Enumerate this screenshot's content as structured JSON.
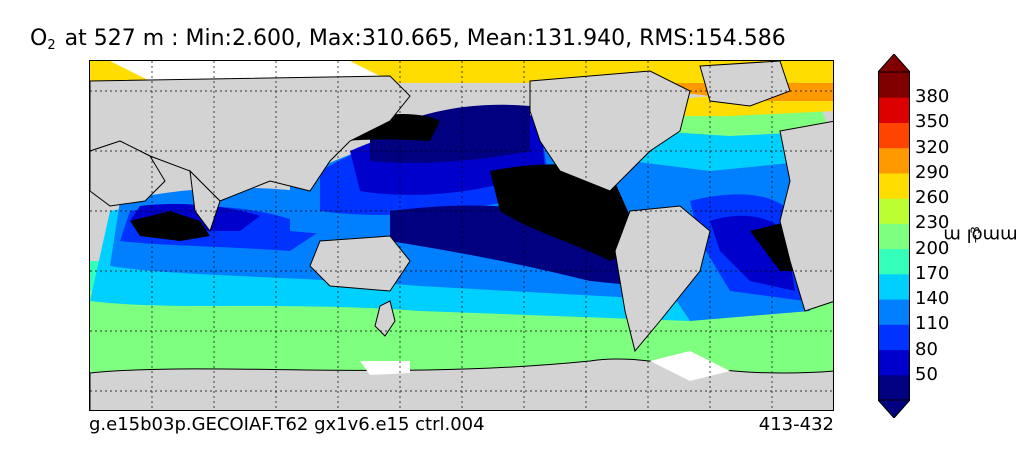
{
  "title": {
    "variable": "O",
    "subscript": "2",
    "rest": " at 527 m : Min:2.600, Max:310.665, Mean:131.940, RMS:154.586"
  },
  "footer": {
    "case_name": "g.e15b03p.GECOIAF.T62 gx1v6.e15 ctrl.004",
    "years": "413-432"
  },
  "colorbar": {
    "units_base": "mmol m",
    "units_exponent": "−3",
    "ticks": [
      "380",
      "350",
      "320",
      "290",
      "260",
      "230",
      "200",
      "170",
      "140",
      "110",
      "80",
      "50"
    ],
    "colors": [
      "#000080",
      "#0000cd",
      "#0033ff",
      "#0080ff",
      "#00d0ff",
      "#33ffbb",
      "#7fff7f",
      "#bbff33",
      "#ffdd00",
      "#ff9900",
      "#ff4400",
      "#dd0000",
      "#800000"
    ],
    "extend": "both"
  },
  "map": {
    "land_color": "#d3d3d3",
    "missing_color": "#ffffff",
    "low_oxygen_color": "#000000",
    "gridlines": "dotted"
  }
}
